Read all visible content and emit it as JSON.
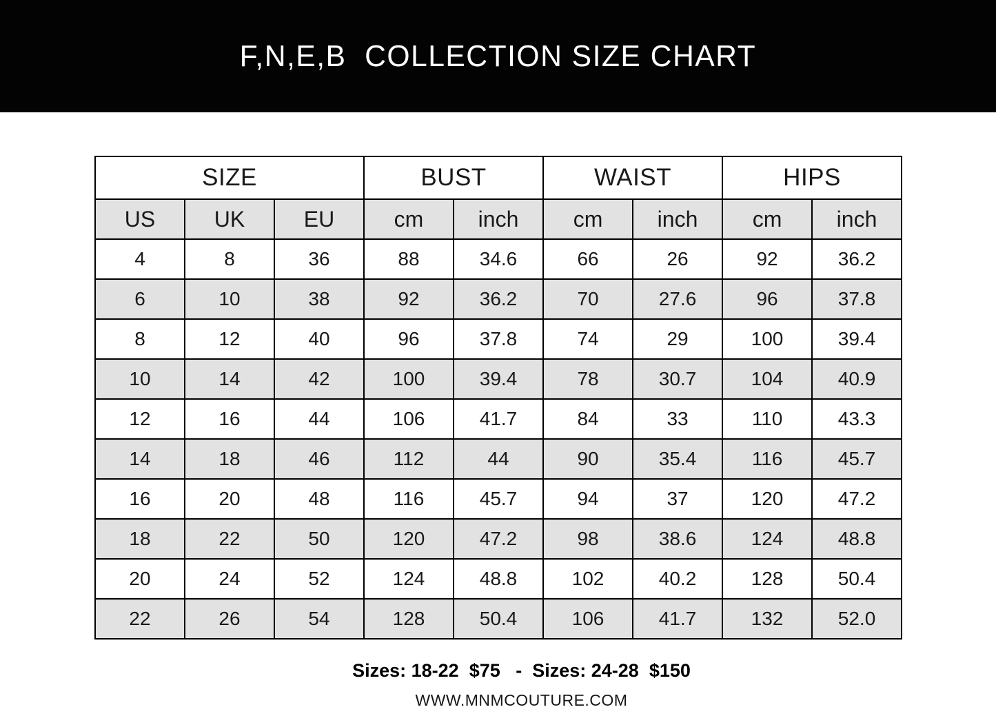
{
  "banner": {
    "background_color": "#030303",
    "text_color": "#ffffff"
  },
  "chart_data": {
    "type": "table",
    "title": "F,N,E,B  COLLECTION SIZE CHART",
    "column_groups": [
      {
        "label": "SIZE",
        "colspan": 3
      },
      {
        "label": "BUST",
        "colspan": 2
      },
      {
        "label": "WAIST",
        "colspan": 2
      },
      {
        "label": "HIPS",
        "colspan": 2
      }
    ],
    "columns": [
      "US",
      "UK",
      "EU",
      "cm",
      "inch",
      "cm",
      "inch",
      "cm",
      "inch"
    ],
    "rows": [
      [
        "4",
        "8",
        "36",
        "88",
        "34.6",
        "66",
        "26",
        "92",
        "36.2"
      ],
      [
        "6",
        "10",
        "38",
        "92",
        "36.2",
        "70",
        "27.6",
        "96",
        "37.8"
      ],
      [
        "8",
        "12",
        "40",
        "96",
        "37.8",
        "74",
        "29",
        "100",
        "39.4"
      ],
      [
        "10",
        "14",
        "42",
        "100",
        "39.4",
        "78",
        "30.7",
        "104",
        "40.9"
      ],
      [
        "12",
        "16",
        "44",
        "106",
        "41.7",
        "84",
        "33",
        "110",
        "43.3"
      ],
      [
        "14",
        "18",
        "46",
        "112",
        "44",
        "90",
        "35.4",
        "116",
        "45.7"
      ],
      [
        "16",
        "20",
        "48",
        "116",
        "45.7",
        "94",
        "37",
        "120",
        "47.2"
      ],
      [
        "18",
        "22",
        "50",
        "120",
        "47.2",
        "98",
        "38.6",
        "124",
        "48.8"
      ],
      [
        "20",
        "24",
        "52",
        "124",
        "48.8",
        "102",
        "40.2",
        "128",
        "50.4"
      ],
      [
        "22",
        "26",
        "54",
        "128",
        "50.4",
        "106",
        "41.7",
        "132",
        "52.0"
      ]
    ],
    "layout": {
      "stripe_color": "#e2e2e2",
      "border_color": "#000000",
      "grid": true
    }
  },
  "footer": {
    "pricing": "Sizes: 18-22  $75   -  Sizes: 24-28  $150",
    "website": "WWW.MNMCOUTURE.COM"
  }
}
